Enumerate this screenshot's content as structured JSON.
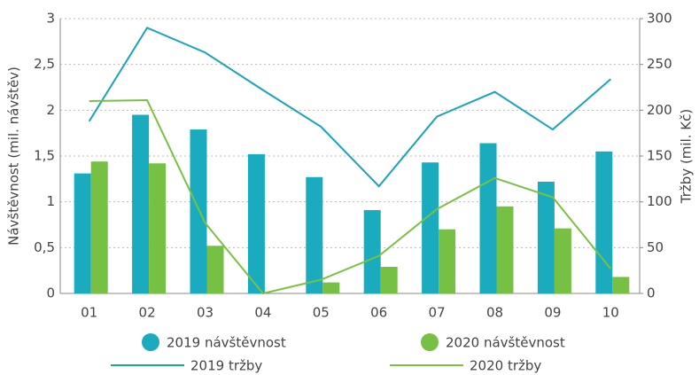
{
  "chart_data": {
    "type": "bar",
    "categories": [
      "01",
      "02",
      "03",
      "04",
      "05",
      "06",
      "07",
      "08",
      "09",
      "10"
    ],
    "ylabel": "Návštěvnost (mil. návštěv)",
    "y2label": "Tržby (mil. Kč)",
    "ylim": [
      0,
      3
    ],
    "yticks": [
      0,
      {
        "value": 0.5,
        "label": "0,5"
      },
      1,
      {
        "value": 1.5,
        "label": "1,5"
      },
      2,
      {
        "value": 2.5,
        "label": "2,5"
      },
      3
    ],
    "y2lim": [
      0,
      300
    ],
    "y2ticks": [
      0,
      50,
      100,
      150,
      200,
      250,
      300
    ],
    "grid": true,
    "legend": "bottom",
    "series": [
      {
        "name": "2019 návštěvnost",
        "type": "bar",
        "color": "#1aabbf",
        "values": [
          1.31,
          1.95,
          1.79,
          1.52,
          1.27,
          0.91,
          1.43,
          1.64,
          1.22,
          1.55
        ]
      },
      {
        "name": "2020 návštěvnost",
        "type": "bar",
        "color": "#76c043",
        "values": [
          1.44,
          1.42,
          0.52,
          0,
          0.12,
          0.29,
          0.7,
          0.95,
          0.71,
          0.18
        ]
      },
      {
        "name": "2019 tržby",
        "type": "line",
        "axis": "y2",
        "color": "#1aa3b8",
        "values": [
          188,
          290,
          263,
          222,
          182,
          117,
          193,
          220,
          179,
          234
        ]
      },
      {
        "name": "2020 tržby",
        "type": "line",
        "axis": "y2",
        "color": "#7ac143",
        "values": [
          210,
          211,
          77,
          0,
          15,
          41,
          92,
          126,
          105,
          27
        ]
      }
    ]
  }
}
